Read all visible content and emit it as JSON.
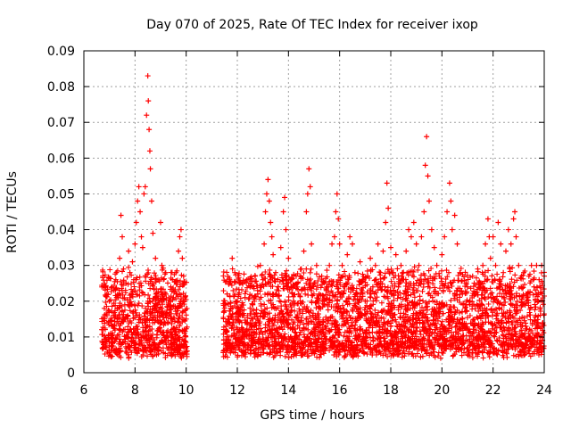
{
  "chart_data": {
    "type": "scatter",
    "title": "Day 070 of 2025, Rate Of TEC Index for receiver ixop",
    "xlabel": "GPS time / hours",
    "ylabel": "ROTI / TECUs",
    "xlim": [
      6,
      24
    ],
    "ylim": [
      0,
      0.09
    ],
    "x_ticks": [
      6,
      8,
      10,
      12,
      14,
      16,
      18,
      20,
      22,
      24
    ],
    "y_ticks": [
      0,
      0.01,
      0.02,
      0.03,
      0.04,
      0.05,
      0.06,
      0.07,
      0.08,
      0.09
    ],
    "x_tick_labels": [
      "6",
      "8",
      "10",
      "12",
      "14",
      "16",
      "18",
      "20",
      "22",
      "24"
    ],
    "y_tick_labels": [
      "0",
      "0.01",
      "0.02",
      "0.03",
      "0.04",
      "0.05",
      "0.06",
      "0.07",
      "0.08",
      "0.09"
    ],
    "grid": true,
    "marker": "+",
    "marker_color": "#ff0000",
    "series": [
      {
        "name": "ROTI",
        "color": "#ff0000",
        "points": [
          [
            6.75,
            0.012
          ],
          [
            6.8,
            0.018
          ],
          [
            6.85,
            0.008
          ],
          [
            6.9,
            0.022
          ],
          [
            6.95,
            0.014
          ],
          [
            7.0,
            0.02
          ],
          [
            7.05,
            0.011
          ],
          [
            7.1,
            0.024
          ],
          [
            7.15,
            0.016
          ],
          [
            7.2,
            0.013
          ],
          [
            7.25,
            0.026
          ],
          [
            7.3,
            0.018
          ],
          [
            7.35,
            0.021
          ],
          [
            7.4,
            0.032
          ],
          [
            7.45,
            0.044
          ],
          [
            7.5,
            0.038
          ],
          [
            7.55,
            0.029
          ],
          [
            7.6,
            0.019
          ],
          [
            7.65,
            0.025
          ],
          [
            7.7,
            0.015
          ],
          [
            7.75,
            0.034
          ],
          [
            7.8,
            0.028
          ],
          [
            7.85,
            0.022
          ],
          [
            7.9,
            0.031
          ],
          [
            7.95,
            0.026
          ],
          [
            8.0,
            0.036
          ],
          [
            8.05,
            0.042
          ],
          [
            8.1,
            0.048
          ],
          [
            8.15,
            0.052
          ],
          [
            8.2,
            0.045
          ],
          [
            8.25,
            0.038
          ],
          [
            8.3,
            0.035
          ],
          [
            8.35,
            0.05
          ],
          [
            8.4,
            0.052
          ],
          [
            8.45,
            0.072
          ],
          [
            8.5,
            0.083
          ],
          [
            8.52,
            0.076
          ],
          [
            8.55,
            0.068
          ],
          [
            8.58,
            0.062
          ],
          [
            8.6,
            0.057
          ],
          [
            8.65,
            0.048
          ],
          [
            8.7,
            0.039
          ],
          [
            8.8,
            0.032
          ],
          [
            8.9,
            0.026
          ],
          [
            9.0,
            0.042
          ],
          [
            9.05,
            0.03
          ],
          [
            9.1,
            0.022
          ],
          [
            9.2,
            0.028
          ],
          [
            9.3,
            0.019
          ],
          [
            9.4,
            0.024
          ],
          [
            9.5,
            0.021
          ],
          [
            9.6,
            0.028
          ],
          [
            9.7,
            0.034
          ],
          [
            9.75,
            0.038
          ],
          [
            9.8,
            0.04
          ],
          [
            9.85,
            0.032
          ],
          [
            9.9,
            0.027
          ],
          [
            9.95,
            0.021
          ],
          [
            10.0,
            0.015
          ],
          [
            11.5,
            0.018
          ],
          [
            11.55,
            0.012
          ],
          [
            11.6,
            0.022
          ],
          [
            11.65,
            0.01
          ],
          [
            11.7,
            0.026
          ],
          [
            11.75,
            0.018
          ],
          [
            11.8,
            0.032
          ],
          [
            11.85,
            0.014
          ],
          [
            11.9,
            0.028
          ],
          [
            12.0,
            0.02
          ],
          [
            12.1,
            0.025
          ],
          [
            12.2,
            0.016
          ],
          [
            12.3,
            0.021
          ],
          [
            12.4,
            0.014
          ],
          [
            12.5,
            0.024
          ],
          [
            12.6,
            0.019
          ],
          [
            12.7,
            0.027
          ],
          [
            12.8,
            0.022
          ],
          [
            12.9,
            0.03
          ],
          [
            13.0,
            0.026
          ],
          [
            13.05,
            0.036
          ],
          [
            13.1,
            0.045
          ],
          [
            13.15,
            0.05
          ],
          [
            13.2,
            0.054
          ],
          [
            13.25,
            0.048
          ],
          [
            13.3,
            0.042
          ],
          [
            13.35,
            0.038
          ],
          [
            13.4,
            0.033
          ],
          [
            13.5,
            0.028
          ],
          [
            13.6,
            0.024
          ],
          [
            13.7,
            0.035
          ],
          [
            13.8,
            0.045
          ],
          [
            13.85,
            0.049
          ],
          [
            13.9,
            0.04
          ],
          [
            14.0,
            0.032
          ],
          [
            14.1,
            0.026
          ],
          [
            14.2,
            0.02
          ],
          [
            14.3,
            0.027
          ],
          [
            14.4,
            0.022
          ],
          [
            14.5,
            0.029
          ],
          [
            14.6,
            0.034
          ],
          [
            14.7,
            0.045
          ],
          [
            14.75,
            0.05
          ],
          [
            14.8,
            0.057
          ],
          [
            14.85,
            0.052
          ],
          [
            14.9,
            0.036
          ],
          [
            15.0,
            0.025
          ],
          [
            15.1,
            0.03
          ],
          [
            15.2,
            0.022
          ],
          [
            15.3,
            0.027
          ],
          [
            15.4,
            0.019
          ],
          [
            15.5,
            0.024
          ],
          [
            15.6,
            0.03
          ],
          [
            15.7,
            0.036
          ],
          [
            15.8,
            0.038
          ],
          [
            15.85,
            0.045
          ],
          [
            15.9,
            0.05
          ],
          [
            15.95,
            0.043
          ],
          [
            16.0,
            0.036
          ],
          [
            16.1,
            0.03
          ],
          [
            16.2,
            0.024
          ],
          [
            16.3,
            0.033
          ],
          [
            16.4,
            0.038
          ],
          [
            16.5,
            0.036
          ],
          [
            16.6,
            0.028
          ],
          [
            16.7,
            0.022
          ],
          [
            16.8,
            0.031
          ],
          [
            16.9,
            0.026
          ],
          [
            17.0,
            0.02
          ],
          [
            17.1,
            0.027
          ],
          [
            17.2,
            0.032
          ],
          [
            17.3,
            0.024
          ],
          [
            17.4,
            0.03
          ],
          [
            17.5,
            0.036
          ],
          [
            17.6,
            0.028
          ],
          [
            17.7,
            0.034
          ],
          [
            17.8,
            0.042
          ],
          [
            17.85,
            0.053
          ],
          [
            17.9,
            0.046
          ],
          [
            18.0,
            0.035
          ],
          [
            18.1,
            0.028
          ],
          [
            18.2,
            0.033
          ],
          [
            18.3,
            0.024
          ],
          [
            18.4,
            0.03
          ],
          [
            18.5,
            0.026
          ],
          [
            18.6,
            0.034
          ],
          [
            18.7,
            0.04
          ],
          [
            18.8,
            0.038
          ],
          [
            18.9,
            0.042
          ],
          [
            19.0,
            0.036
          ],
          [
            19.1,
            0.03
          ],
          [
            19.2,
            0.038
          ],
          [
            19.3,
            0.045
          ],
          [
            19.35,
            0.058
          ],
          [
            19.4,
            0.066
          ],
          [
            19.45,
            0.055
          ],
          [
            19.5,
            0.048
          ],
          [
            19.6,
            0.04
          ],
          [
            19.7,
            0.035
          ],
          [
            19.8,
            0.03
          ],
          [
            19.9,
            0.027
          ],
          [
            20.0,
            0.033
          ],
          [
            20.1,
            0.038
          ],
          [
            20.2,
            0.045
          ],
          [
            20.3,
            0.053
          ],
          [
            20.35,
            0.048
          ],
          [
            20.4,
            0.04
          ],
          [
            20.5,
            0.044
          ],
          [
            20.6,
            0.036
          ],
          [
            20.7,
            0.028
          ],
          [
            20.8,
            0.022
          ],
          [
            20.9,
            0.018
          ],
          [
            21.0,
            0.024
          ],
          [
            21.1,
            0.02
          ],
          [
            21.2,
            0.027
          ],
          [
            21.3,
            0.022
          ],
          [
            21.4,
            0.029
          ],
          [
            21.5,
            0.024
          ],
          [
            21.6,
            0.03
          ],
          [
            21.7,
            0.036
          ],
          [
            21.8,
            0.043
          ],
          [
            21.85,
            0.038
          ],
          [
            21.9,
            0.032
          ],
          [
            22.0,
            0.038
          ],
          [
            22.1,
            0.03
          ],
          [
            22.2,
            0.042
          ],
          [
            22.3,
            0.036
          ],
          [
            22.4,
            0.028
          ],
          [
            22.5,
            0.034
          ],
          [
            22.6,
            0.04
          ],
          [
            22.7,
            0.036
          ],
          [
            22.8,
            0.043
          ],
          [
            22.85,
            0.045
          ],
          [
            22.9,
            0.038
          ],
          [
            23.0,
            0.03
          ],
          [
            23.1,
            0.024
          ],
          [
            23.2,
            0.028
          ],
          [
            23.3,
            0.022
          ],
          [
            23.4,
            0.027
          ],
          [
            23.5,
            0.03
          ],
          [
            23.6,
            0.024
          ],
          [
            23.7,
            0.03
          ],
          [
            23.8,
            0.026
          ],
          [
            23.9,
            0.03
          ],
          [
            24.0,
            0.027
          ]
        ]
      }
    ]
  }
}
